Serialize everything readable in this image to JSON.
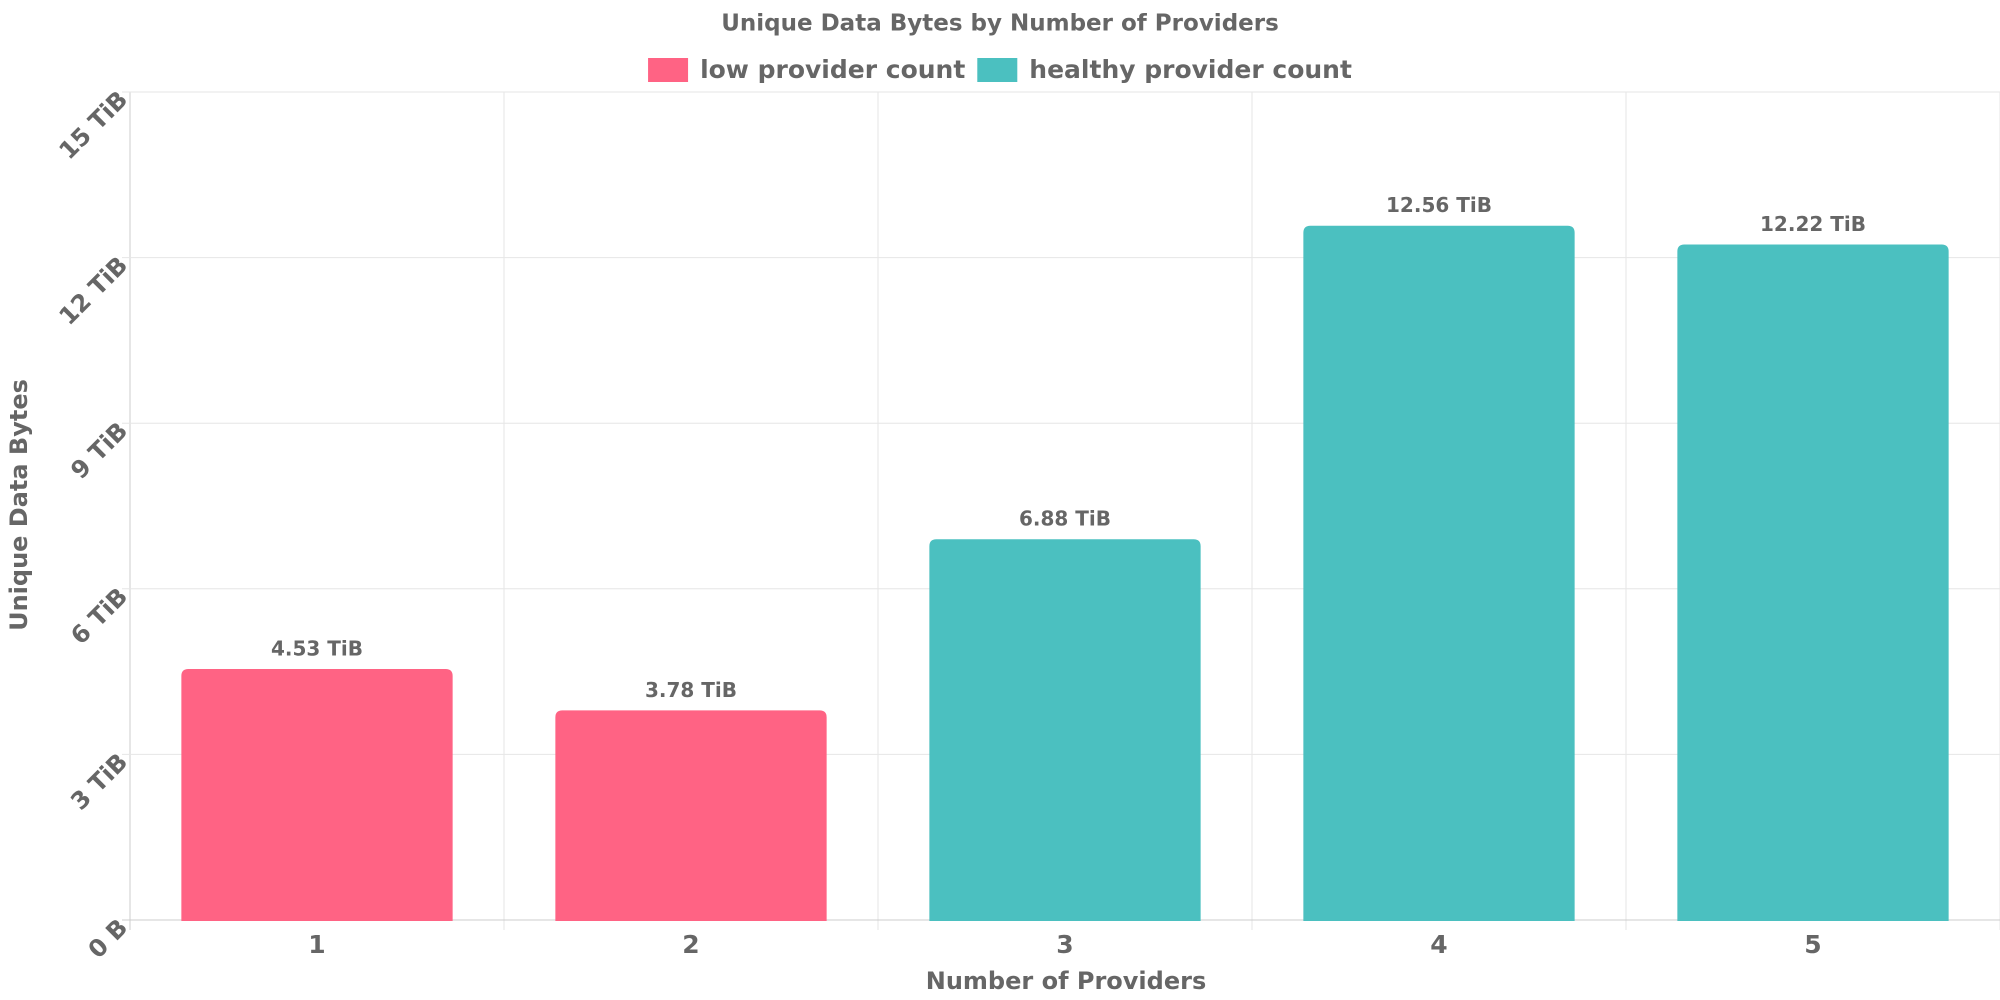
{
  "chart_data": {
    "type": "bar",
    "title": "Unique Data Bytes by Number of Providers",
    "x_label": "Number of Providers",
    "y_label": "Unique Data Bytes",
    "categories": [
      "1",
      "2",
      "3",
      "4",
      "5"
    ],
    "series": [
      {
        "name": "low provider count",
        "color": "#ff6384",
        "values": [
          4.53,
          3.78,
          null,
          null,
          null
        ],
        "value_labels": [
          "4.53 TiB",
          "3.78 TiB",
          null,
          null,
          null
        ]
      },
      {
        "name": "healthy provider count",
        "color": "#4bc0c0",
        "values": [
          null,
          null,
          6.88,
          12.56,
          12.22
        ],
        "value_labels": [
          null,
          null,
          "6.88 TiB",
          "12.56 TiB",
          "12.22 TiB"
        ]
      }
    ],
    "ylim": [
      0,
      15
    ],
    "yticks": [
      {
        "value": 0,
        "label": "0 B"
      },
      {
        "value": 3,
        "label": "3 TiB"
      },
      {
        "value": 6,
        "label": "6 TiB"
      },
      {
        "value": 9,
        "label": "9 TiB"
      },
      {
        "value": 12,
        "label": "12 TiB"
      },
      {
        "value": 15,
        "label": "15 TiB"
      }
    ],
    "grid": true,
    "legend": "top"
  }
}
